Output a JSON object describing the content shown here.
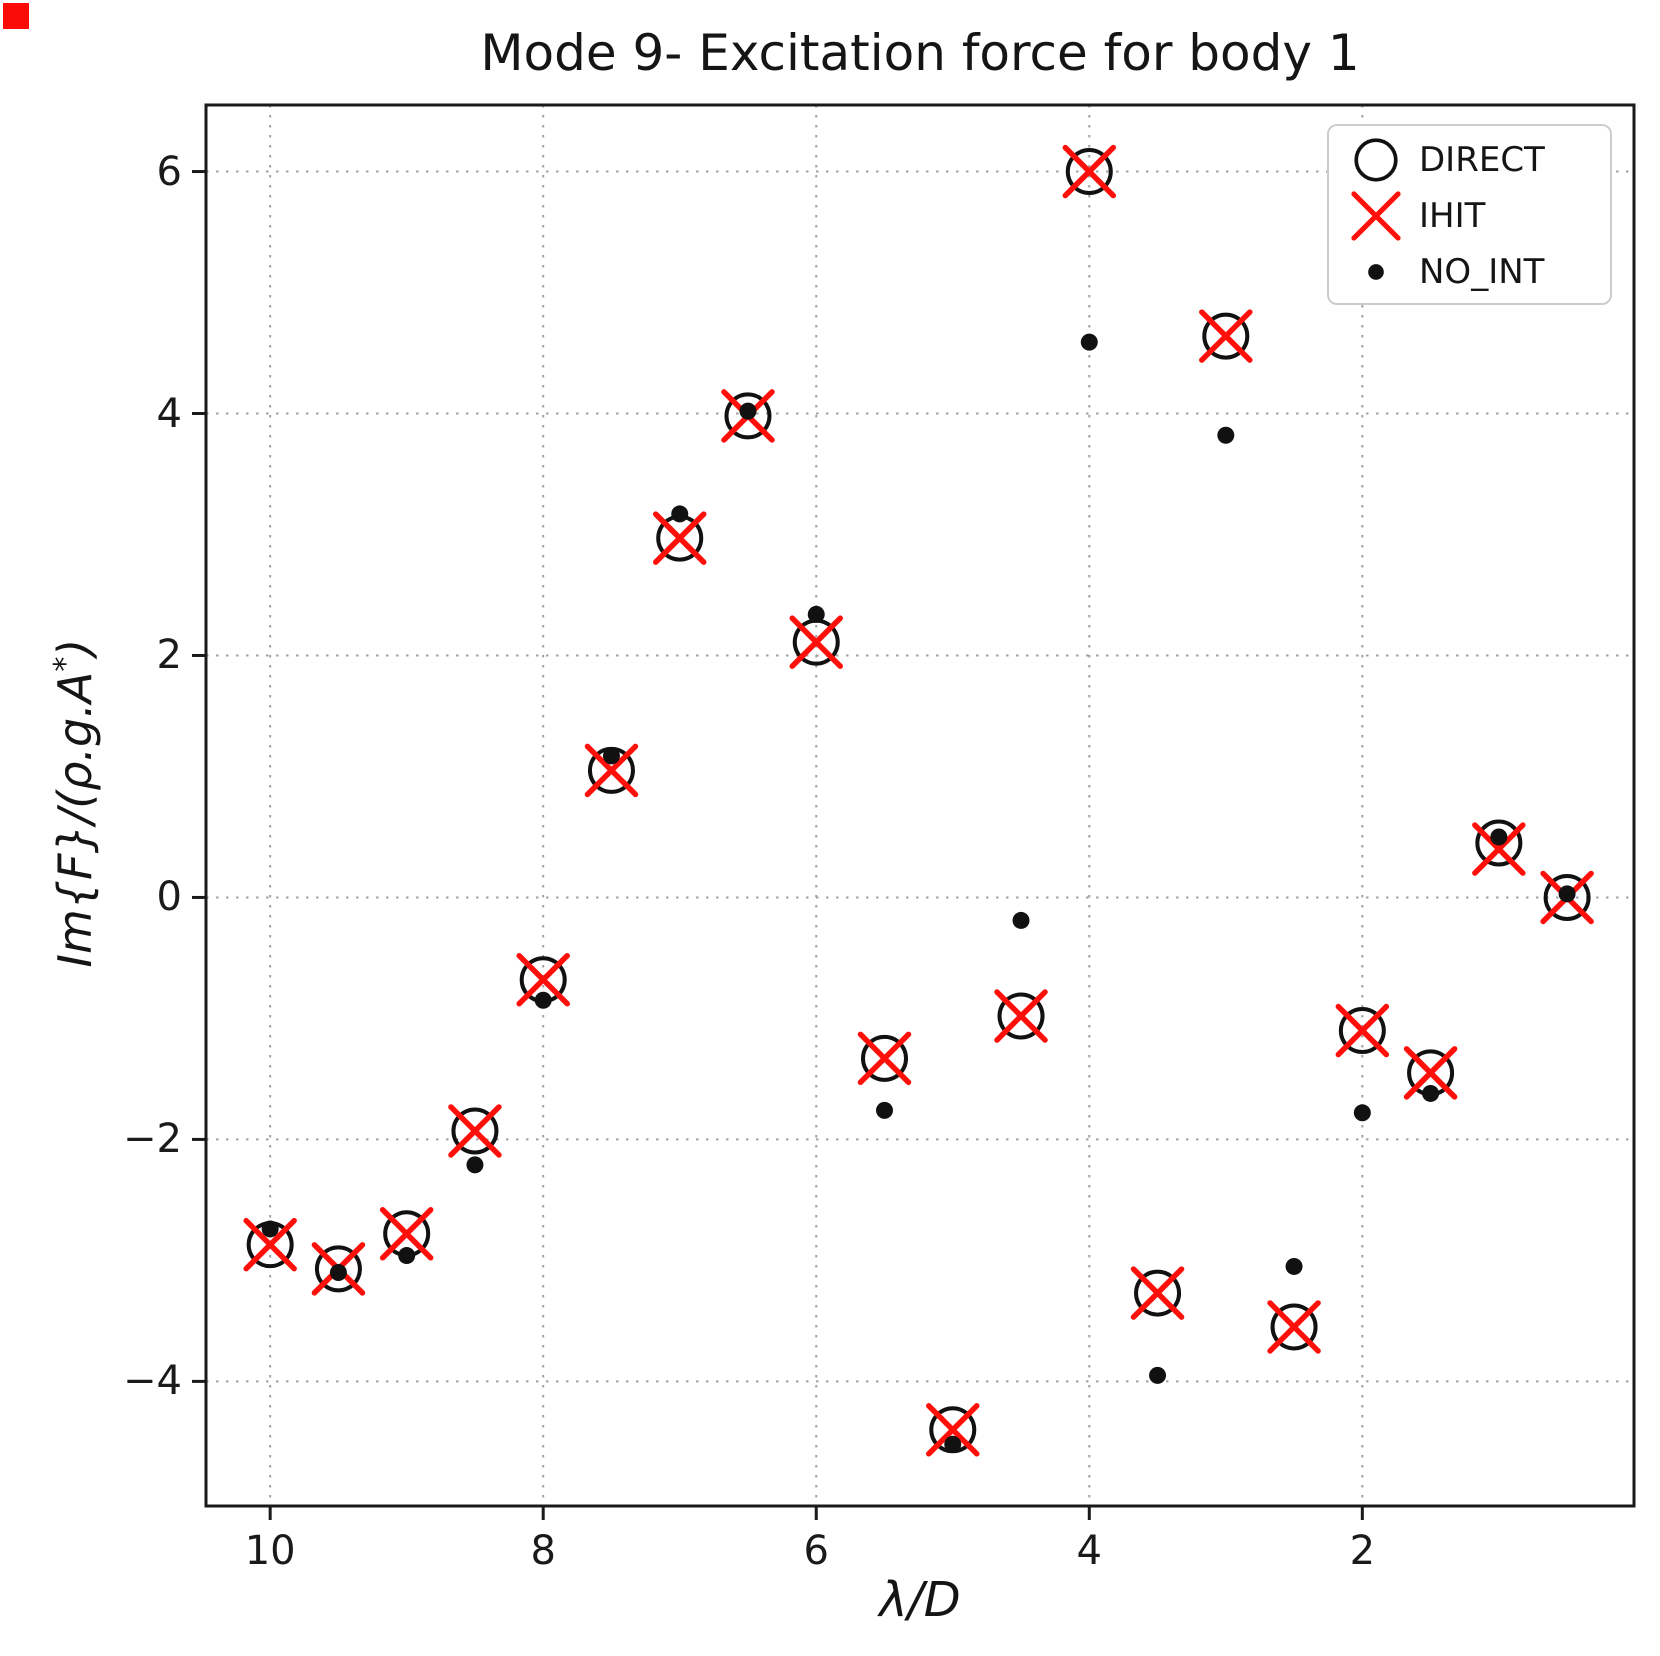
{
  "page": {
    "title": "Mode 9- Excitation force for body 1"
  },
  "colors": {
    "direct": "#111111",
    "ihit": "#ff0f0a",
    "no_int": "#111111",
    "grid": "#a0a0a0",
    "spine": "#1a1a1a",
    "corner_mark": "#fb0d07",
    "legend_border": "#cccccc"
  },
  "chart_data": {
    "type": "scatter",
    "title": "Mode 9- Excitation force for body 1",
    "xlabel": "λ/D",
    "ylabel": "Im{F}/(ρ.g.A*)",
    "ylabel_parts": {
      "pre": "Im{F}/(ρ.g.A",
      "sup": "*",
      "post": ")"
    },
    "x_axis_reversed": true,
    "xlim": [
      10.47,
      0.01
    ],
    "ylim": [
      -5.03,
      6.55
    ],
    "x_ticks": [
      10,
      8,
      6,
      4,
      2
    ],
    "y_ticks": [
      6,
      4,
      2,
      0,
      -2,
      -4
    ],
    "grid": "dotted",
    "legend_position": "upper right",
    "x": [
      10,
      9.5,
      9,
      8.5,
      8,
      7.5,
      7,
      6.5,
      6,
      5.5,
      5,
      4.5,
      4,
      3.5,
      3,
      2.5,
      2,
      1.5,
      1,
      0.5
    ],
    "series": [
      {
        "name": "DIRECT",
        "marker": "open-circle",
        "color": "#111111",
        "values": [
          -2.87,
          -3.07,
          -2.78,
          -1.93,
          -0.68,
          1.05,
          2.97,
          3.98,
          2.11,
          -1.33,
          -4.4,
          -0.98,
          6.0,
          -3.27,
          4.64,
          -3.55,
          -1.1,
          -1.45,
          0.45,
          0.0
        ]
      },
      {
        "name": "IHIT",
        "marker": "x",
        "color": "#ff0f0a",
        "values": [
          -2.87,
          -3.07,
          -2.78,
          -1.93,
          -0.68,
          1.05,
          2.97,
          3.98,
          2.11,
          -1.33,
          -4.4,
          -0.98,
          6.0,
          -3.27,
          4.64,
          -3.55,
          -1.1,
          -1.45,
          0.4,
          0.0
        ]
      },
      {
        "name": "NO_INT",
        "marker": "dot",
        "color": "#111111",
        "values": [
          -2.74,
          -3.1,
          -2.96,
          -2.21,
          -0.85,
          1.17,
          3.17,
          4.02,
          2.34,
          -1.76,
          -4.52,
          -0.19,
          4.59,
          -3.95,
          3.82,
          -3.05,
          -1.78,
          -1.62,
          0.5,
          0.03
        ]
      }
    ]
  }
}
